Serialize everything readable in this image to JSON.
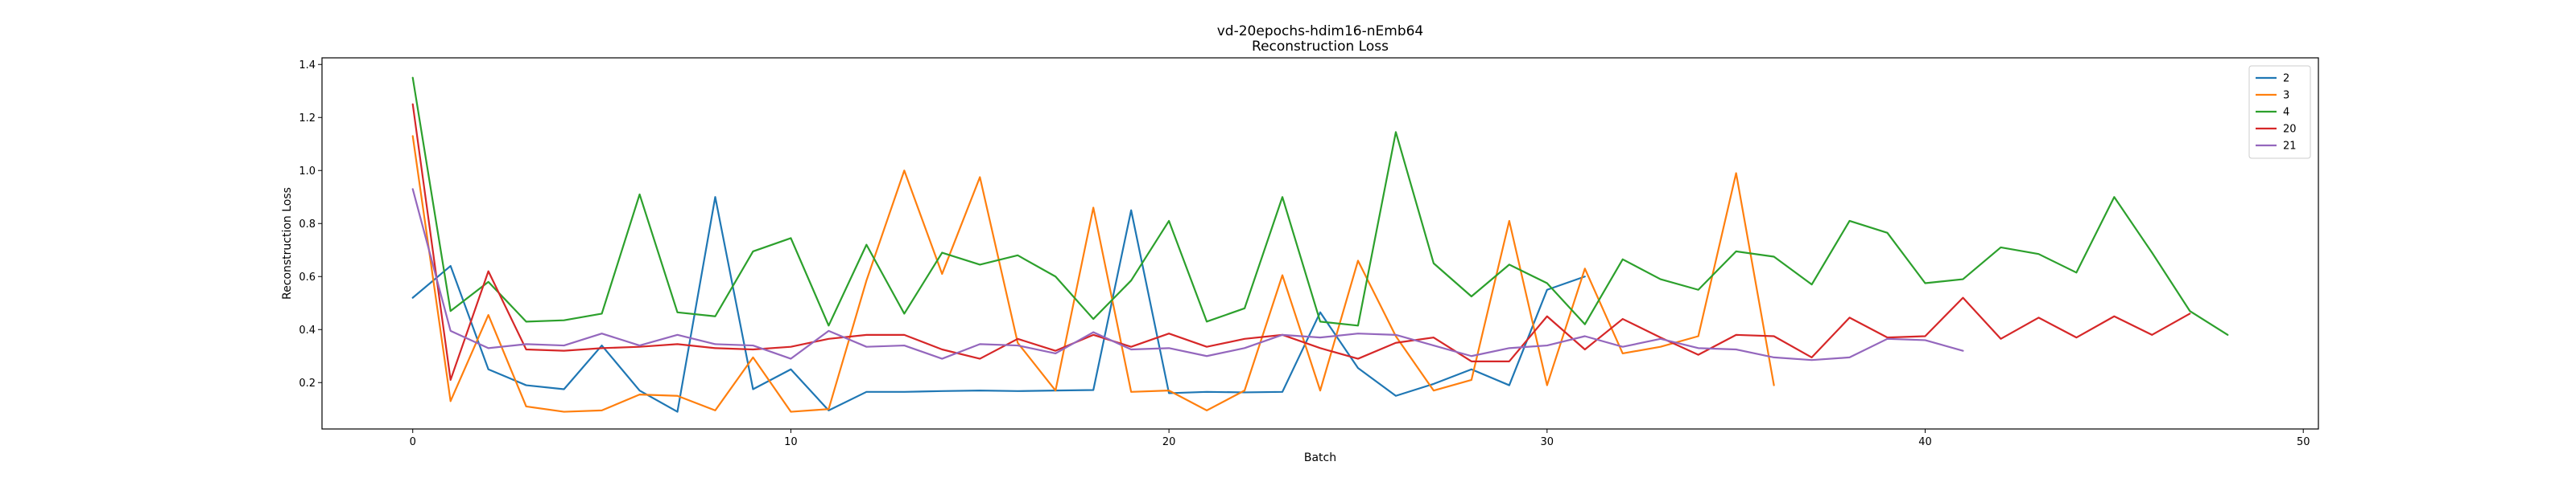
{
  "chart_data": {
    "type": "line",
    "title": "vd-20epochs-hdim16-nEmb64",
    "subtitle": "Reconstruction Loss",
    "xlabel": "Batch",
    "ylabel": "Reconstruction Loss",
    "xlim": [
      -2.4,
      50.4
    ],
    "ylim": [
      0.025,
      1.425
    ],
    "xticks": [
      0,
      10,
      20,
      30,
      40,
      50
    ],
    "yticks": [
      0.2,
      0.4,
      0.6,
      0.8,
      1.0,
      1.2,
      1.4
    ],
    "xtick_labels": [
      "0",
      "10",
      "20",
      "30",
      "40",
      "50"
    ],
    "ytick_labels": [
      "0.2",
      "0.4",
      "0.6",
      "0.8",
      "1.0",
      "1.2",
      "1.4"
    ],
    "grid": false,
    "legend_position": "top-right",
    "series": [
      {
        "name": "2",
        "color": "#1f77b4",
        "values": [
          0.52,
          0.64,
          0.25,
          0.19,
          0.175,
          0.34,
          0.17,
          0.09,
          0.9,
          0.175,
          0.25,
          0.095,
          0.165,
          0.165,
          0.168,
          0.17,
          0.168,
          0.17,
          0.172,
          0.85,
          0.16,
          0.165,
          0.163,
          0.165,
          0.465,
          0.255,
          0.15,
          0.195,
          0.25,
          0.19,
          0.55,
          0.6
        ]
      },
      {
        "name": "3",
        "color": "#ff7f0e",
        "values": [
          1.13,
          0.13,
          0.455,
          0.11,
          0.09,
          0.095,
          0.155,
          0.15,
          0.095,
          0.295,
          0.09,
          0.1,
          0.585,
          1.0,
          0.61,
          0.975,
          0.35,
          0.17,
          0.86,
          0.165,
          0.17,
          0.095,
          0.17,
          0.605,
          0.17,
          0.66,
          0.375,
          0.17,
          0.21,
          0.81,
          0.19,
          0.63,
          0.31,
          0.335,
          0.375,
          0.99,
          0.19
        ]
      },
      {
        "name": "4",
        "color": "#2ca02c",
        "values": [
          1.35,
          0.47,
          0.58,
          0.43,
          0.435,
          0.46,
          0.91,
          0.465,
          0.45,
          0.695,
          0.745,
          0.415,
          0.72,
          0.46,
          0.69,
          0.645,
          0.68,
          0.6,
          0.44,
          0.585,
          0.81,
          0.43,
          0.48,
          0.9,
          0.43,
          0.415,
          1.145,
          0.65,
          0.525,
          0.645,
          0.575,
          0.42,
          0.665,
          0.59,
          0.55,
          0.695,
          0.675,
          0.57,
          0.81,
          0.765,
          0.575,
          0.59,
          0.71,
          0.685,
          0.615,
          0.9,
          0.69,
          0.47,
          0.38
        ]
      },
      {
        "name": "20",
        "color": "#d62728",
        "values": [
          1.25,
          0.21,
          0.62,
          0.325,
          0.32,
          0.33,
          0.335,
          0.345,
          0.33,
          0.325,
          0.335,
          0.365,
          0.38,
          0.38,
          0.325,
          0.29,
          0.365,
          0.32,
          0.38,
          0.335,
          0.385,
          0.335,
          0.365,
          0.38,
          0.33,
          0.29,
          0.35,
          0.37,
          0.28,
          0.28,
          0.45,
          0.325,
          0.44,
          0.37,
          0.305,
          0.38,
          0.375,
          0.295,
          0.445,
          0.37,
          0.375,
          0.52,
          0.365,
          0.445,
          0.37,
          0.45,
          0.38,
          0.46
        ]
      },
      {
        "name": "21",
        "color": "#9467bd",
        "values": [
          0.93,
          0.395,
          0.33,
          0.345,
          0.34,
          0.385,
          0.34,
          0.38,
          0.345,
          0.34,
          0.29,
          0.395,
          0.335,
          0.34,
          0.29,
          0.345,
          0.34,
          0.31,
          0.39,
          0.325,
          0.33,
          0.3,
          0.33,
          0.38,
          0.37,
          0.385,
          0.38,
          0.34,
          0.3,
          0.33,
          0.34,
          0.375,
          0.335,
          0.365,
          0.33,
          0.325,
          0.295,
          0.285,
          0.295,
          0.365,
          0.36,
          0.32
        ]
      }
    ]
  }
}
